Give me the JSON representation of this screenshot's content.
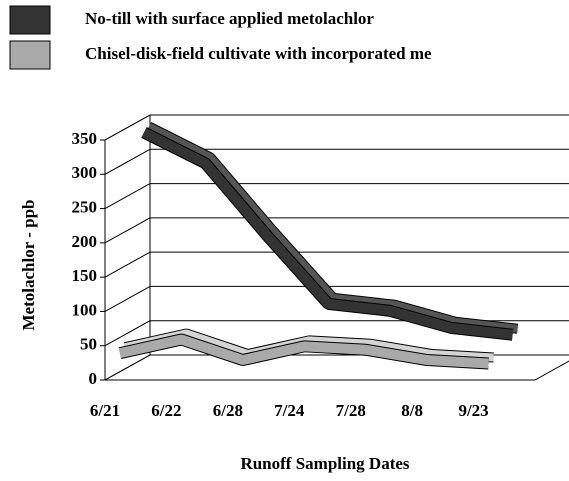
{
  "chart_data": {
    "type": "line",
    "categories": [
      "6/21",
      "6/22",
      "6/28",
      "7/24",
      "7/28",
      "8/8",
      "9/23"
    ],
    "series": [
      {
        "name": "No-till with surface applied metolachlor",
        "color": "#333333",
        "values": [
          330,
          285,
          180,
          80,
          70,
          45,
          35
        ]
      },
      {
        "name": "Chisel-disk-field cultivate with incorporated me",
        "color": "#aaaaaa",
        "values": [
          30,
          50,
          20,
          40,
          35,
          20,
          15
        ]
      }
    ],
    "ylim": [
      0,
      350
    ],
    "yticks": [
      0,
      50,
      100,
      150,
      200,
      250,
      300,
      350
    ],
    "ylabel": "Metolachlor - ppb",
    "xlabel": "Runoff Sampling Dates",
    "grid": true,
    "legend": "top-left"
  }
}
